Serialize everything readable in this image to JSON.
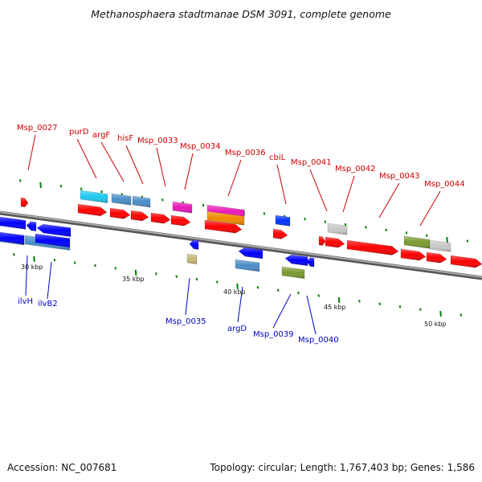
{
  "title": "Methanosphaera stadtmanae DSM 3091, complete genome",
  "footer": {
    "accession": "Accession: NC_007681",
    "summary": "Topology: circular; Length: 1,767,403 bp; Genes: 1,586"
  },
  "scale_labels": [
    "30 kbp",
    "35 kbp",
    "40 kbp",
    "45 kbp",
    "50 kbp"
  ],
  "colors": {
    "forward_gene": "#ff0000",
    "reverse_gene": "#0000ff",
    "forward_label": "#cc0000",
    "reverse_label": "#0000cc",
    "backbone": "#888888",
    "tick": "#008000"
  },
  "forward_labels": [
    "Msp_0027",
    "purD",
    "argF",
    "hisF",
    "Msp_0033",
    "Msp_0034",
    "Msp_0036",
    "cbiL",
    "Msp_0041",
    "Msp_0042",
    "Msp_0043",
    "Msp_0044"
  ],
  "reverse_labels": [
    "ilvH",
    "ilvB2",
    "Msp_0035",
    "argD",
    "Msp_0039",
    "Msp_0040"
  ]
}
